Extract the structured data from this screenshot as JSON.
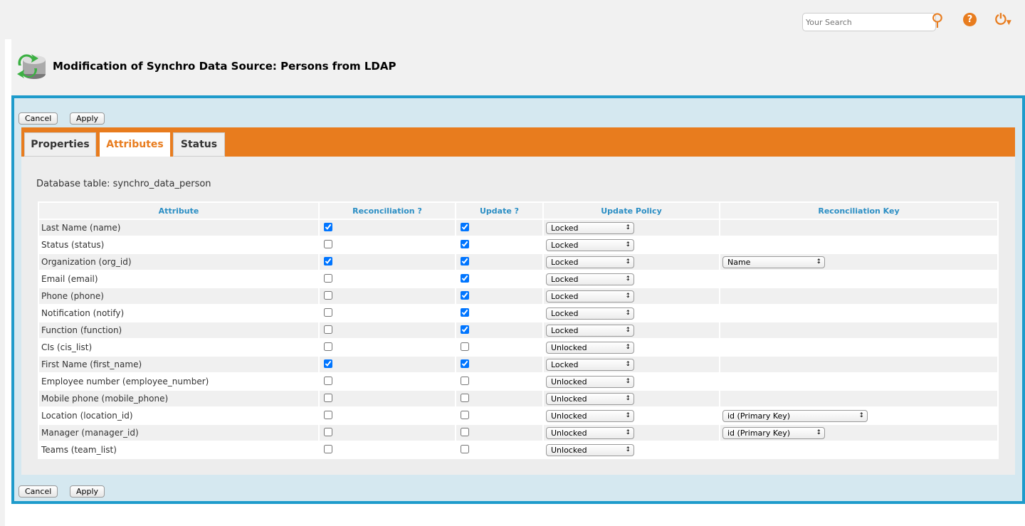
{
  "header": {
    "search_placeholder": "Your Search",
    "title": "Modification of Synchro Data Source: Persons from LDAP"
  },
  "colors": {
    "accent": "#e87c1e",
    "frame": "#1e9bcb",
    "header_text": "#2b8ec4"
  },
  "buttons": {
    "cancel": "Cancel",
    "apply": "Apply"
  },
  "tabs": [
    {
      "label": "Properties"
    },
    {
      "label": "Attributes",
      "active": true
    },
    {
      "label": "Status"
    }
  ],
  "db_table": "Database table: synchro_data_person",
  "columns": [
    "Attribute",
    "Reconciliation ?",
    "Update ?",
    "Update Policy",
    "Reconciliation Key"
  ],
  "rows": [
    {
      "attr": "Last Name (name)",
      "recon": true,
      "update": true,
      "policy": "Locked",
      "key": ""
    },
    {
      "attr": "Status (status)",
      "recon": false,
      "update": true,
      "policy": "Locked",
      "key": ""
    },
    {
      "attr": "Organization (org_id)",
      "recon": true,
      "update": true,
      "policy": "Locked",
      "key": "Name"
    },
    {
      "attr": "Email (email)",
      "recon": false,
      "update": true,
      "policy": "Locked",
      "key": ""
    },
    {
      "attr": "Phone (phone)",
      "recon": false,
      "update": true,
      "policy": "Locked",
      "key": ""
    },
    {
      "attr": "Notification (notify)",
      "recon": false,
      "update": true,
      "policy": "Locked",
      "key": ""
    },
    {
      "attr": "Function (function)",
      "recon": false,
      "update": true,
      "policy": "Locked",
      "key": ""
    },
    {
      "attr": "CIs (cis_list)",
      "recon": false,
      "update": false,
      "policy": "Unlocked",
      "key": ""
    },
    {
      "attr": "First Name (first_name)",
      "recon": true,
      "update": true,
      "policy": "Locked",
      "key": ""
    },
    {
      "attr": "Employee number (employee_number)",
      "recon": false,
      "update": false,
      "policy": "Unlocked",
      "key": ""
    },
    {
      "attr": "Mobile phone (mobile_phone)",
      "recon": false,
      "update": false,
      "policy": "Unlocked",
      "key": ""
    },
    {
      "attr": "Location (location_id)",
      "recon": false,
      "update": false,
      "policy": "Unlocked",
      "key": "id (Primary Key)",
      "wide": true
    },
    {
      "attr": "Manager (manager_id)",
      "recon": false,
      "update": false,
      "policy": "Unlocked",
      "key": "id (Primary Key)"
    },
    {
      "attr": "Teams (team_list)",
      "recon": false,
      "update": false,
      "policy": "Unlocked",
      "key": ""
    }
  ]
}
